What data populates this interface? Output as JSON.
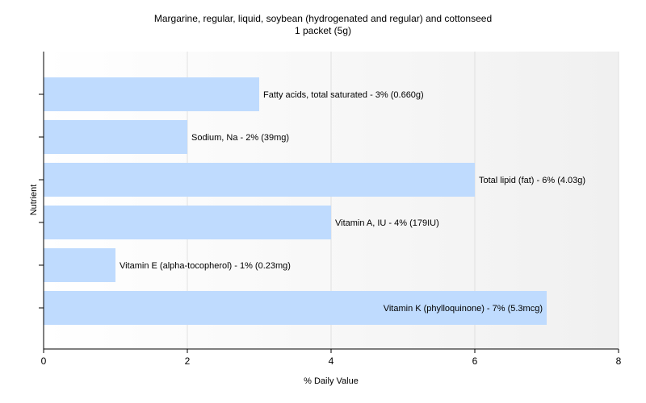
{
  "chart_data": {
    "type": "bar",
    "orientation": "horizontal",
    "title": "Margarine, regular, liquid, soybean (hydrogenated and regular) and cottonseed",
    "subtitle": "1 packet (5g)",
    "xlabel": "% Daily Value",
    "ylabel": "Nutrient",
    "xlim": [
      0,
      8
    ],
    "xticks": [
      "0",
      "2",
      "4",
      "6",
      "8"
    ],
    "categories": [
      "Fatty acids, total saturated",
      "Sodium, Na",
      "Total lipid (fat)",
      "Vitamin A, IU",
      "Vitamin E (alpha-tocopherol)",
      "Vitamin K (phylloquinone)"
    ],
    "values": [
      3,
      2,
      6,
      4,
      1,
      7
    ],
    "labels": [
      "Fatty acids, total saturated - 3% (0.660g)",
      "Sodium, Na - 2% (39mg)",
      "Total lipid (fat) - 6% (4.03g)",
      "Vitamin A, IU - 4% (179IU)",
      "Vitamin E (alpha-tocopherol) - 1% (0.23mg)",
      "Vitamin K (phylloquinone) - 7% (5.3mcg)"
    ],
    "bar_color": "#bfdbfe",
    "grid": true
  }
}
